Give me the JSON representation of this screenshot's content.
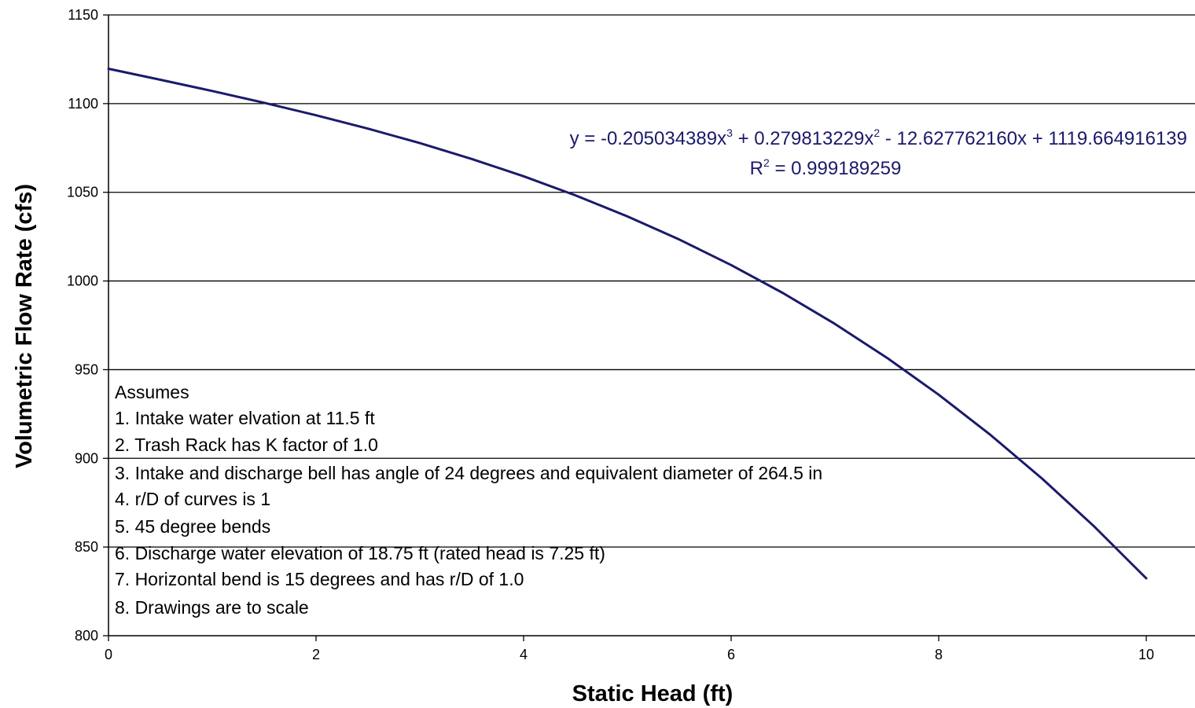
{
  "chart_data": {
    "type": "line",
    "title": "",
    "xlabel": "Static Head (ft)",
    "ylabel": "Volumetric Flow Rate (cfs)",
    "xlim": [
      0,
      10.5
    ],
    "ylim": [
      800,
      1150
    ],
    "x_ticks": [
      "0",
      "2",
      "4",
      "6",
      "8",
      "10"
    ],
    "y_ticks": [
      "800",
      "850",
      "900",
      "950",
      "1000",
      "1050",
      "1100",
      "1150"
    ],
    "grid": "horizontal",
    "line_color": "#1a1a6b",
    "series": [
      {
        "x": [
          0,
          0.5,
          1,
          1.5,
          2,
          2.5,
          3,
          3.5,
          4,
          4.5,
          5,
          5.5,
          6,
          6.5,
          7,
          7.5,
          8,
          8.5,
          9,
          9.5,
          10
        ],
        "values": [
          1119.66,
          1113.47,
          1107.11,
          1100.47,
          1093.44,
          1085.9,
          1077.72,
          1068.81,
          1059.03,
          1048.27,
          1036.42,
          1023.37,
          1008.98,
          993.16,
          975.78,
          956.73,
          935.89,
          913.14,
          888.38,
          861.48,
          832.32
        ]
      }
    ],
    "annotations": {
      "equation": {
        "prefix": "y = -0.205034389x",
        "exp1": "3",
        "mid": " + 0.279813229x",
        "exp2": "2",
        "suffix": " - 12.627762160x + 1119.664916139"
      },
      "r_squared": {
        "prefix": "R",
        "exp": "2",
        "suffix": " = 0.999189259"
      }
    },
    "notes": [
      "Assumes",
      "1.   Intake water elvation at 11.5 ft",
      "2.  Trash Rack has K factor of 1.0",
      "3.  Intake and discharge bell has angle of 24 degrees and equivalent diameter of 264.5 in",
      "4.  r/D of curves is 1",
      "5.  45 degree bends",
      "6.  Discharge water elevation of 18.75 ft (rated head is 7.25 ft)",
      "7.  Horizontal bend is 15 degrees and has r/D of 1.0",
      "8.  Drawings are to scale"
    ]
  }
}
